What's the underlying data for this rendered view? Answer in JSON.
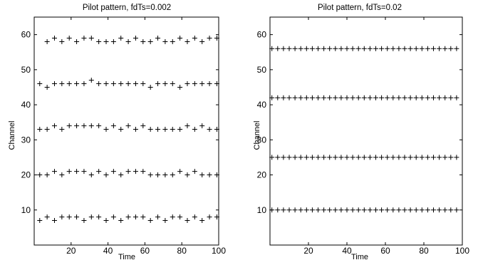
{
  "chart_data": [
    {
      "type": "scatter",
      "title": "Pilot pattern, fdTs=0.002",
      "xlabel": "Time",
      "ylabel": "Channel",
      "xlim": [
        0,
        100
      ],
      "ylim": [
        0,
        65
      ],
      "xticks": [
        20,
        40,
        60,
        80,
        100
      ],
      "yticks": [
        10,
        20,
        30,
        40,
        50,
        60
      ],
      "marker": "+",
      "grid": false,
      "series": [
        {
          "x": [
            3,
            7,
            11,
            15,
            19,
            23,
            27,
            31,
            35,
            39,
            43,
            47,
            51,
            55,
            59,
            63,
            67,
            71,
            75,
            79,
            83,
            87,
            91,
            95,
            99
          ],
          "y": [
            7,
            8,
            7,
            8,
            8,
            8,
            7,
            8,
            8,
            7,
            8,
            7,
            8,
            8,
            8,
            7,
            8,
            7,
            8,
            8,
            7,
            8,
            7,
            8,
            8
          ]
        },
        {
          "x": [
            3,
            7,
            11,
            15,
            19,
            23,
            27,
            31,
            35,
            39,
            43,
            47,
            51,
            55,
            59,
            63,
            67,
            71,
            75,
            79,
            83,
            87,
            91,
            95,
            99
          ],
          "y": [
            20,
            20,
            21,
            20,
            21,
            21,
            21,
            20,
            21,
            20,
            21,
            20,
            21,
            21,
            21,
            20,
            20,
            20,
            20,
            21,
            20,
            21,
            20,
            20,
            20
          ]
        },
        {
          "x": [
            3,
            7,
            11,
            15,
            19,
            23,
            27,
            31,
            35,
            39,
            43,
            47,
            51,
            55,
            59,
            63,
            67,
            71,
            75,
            79,
            83,
            87,
            91,
            95,
            99
          ],
          "y": [
            33,
            33,
            34,
            33,
            34,
            34,
            34,
            34,
            34,
            33,
            34,
            33,
            34,
            33,
            34,
            33,
            33,
            33,
            33,
            33,
            34,
            33,
            34,
            33,
            33
          ]
        },
        {
          "x": [
            3,
            7,
            11,
            15,
            19,
            23,
            27,
            31,
            35,
            39,
            43,
            47,
            51,
            55,
            59,
            63,
            67,
            71,
            75,
            79,
            83,
            87,
            91,
            95,
            99
          ],
          "y": [
            46,
            45,
            46,
            46,
            46,
            46,
            46,
            47,
            46,
            46,
            46,
            46,
            46,
            46,
            46,
            45,
            46,
            46,
            46,
            45,
            46,
            46,
            46,
            46,
            46
          ]
        },
        {
          "x": [
            7,
            11,
            15,
            19,
            23,
            27,
            31,
            35,
            39,
            43,
            47,
            51,
            55,
            59,
            63,
            67,
            71,
            75,
            79,
            83,
            87,
            91,
            95,
            99
          ],
          "y": [
            58,
            59,
            58,
            59,
            58,
            59,
            59,
            58,
            58,
            58,
            59,
            58,
            59,
            58,
            58,
            59,
            58,
            58,
            59,
            58,
            59,
            58,
            59,
            59
          ]
        }
      ]
    },
    {
      "type": "scatter",
      "title": "Pilot pattern, fdTs=0.02",
      "xlabel": "Time",
      "ylabel": "Channel",
      "xlim": [
        0,
        100
      ],
      "ylim": [
        0,
        65
      ],
      "xticks": [
        20,
        40,
        60,
        80,
        100
      ],
      "yticks": [
        10,
        20,
        30,
        40,
        50,
        60
      ],
      "marker": "+",
      "grid": false,
      "series": [
        {
          "x_start": 1,
          "x_end": 97,
          "x_step": 3,
          "y": 10
        },
        {
          "x_start": 1,
          "x_end": 97,
          "x_step": 3,
          "y": 25
        },
        {
          "x_start": 1,
          "x_end": 97,
          "x_step": 3,
          "y": 42
        },
        {
          "x_start": 1,
          "x_end": 97,
          "x_step": 3,
          "y": 56
        }
      ]
    }
  ]
}
